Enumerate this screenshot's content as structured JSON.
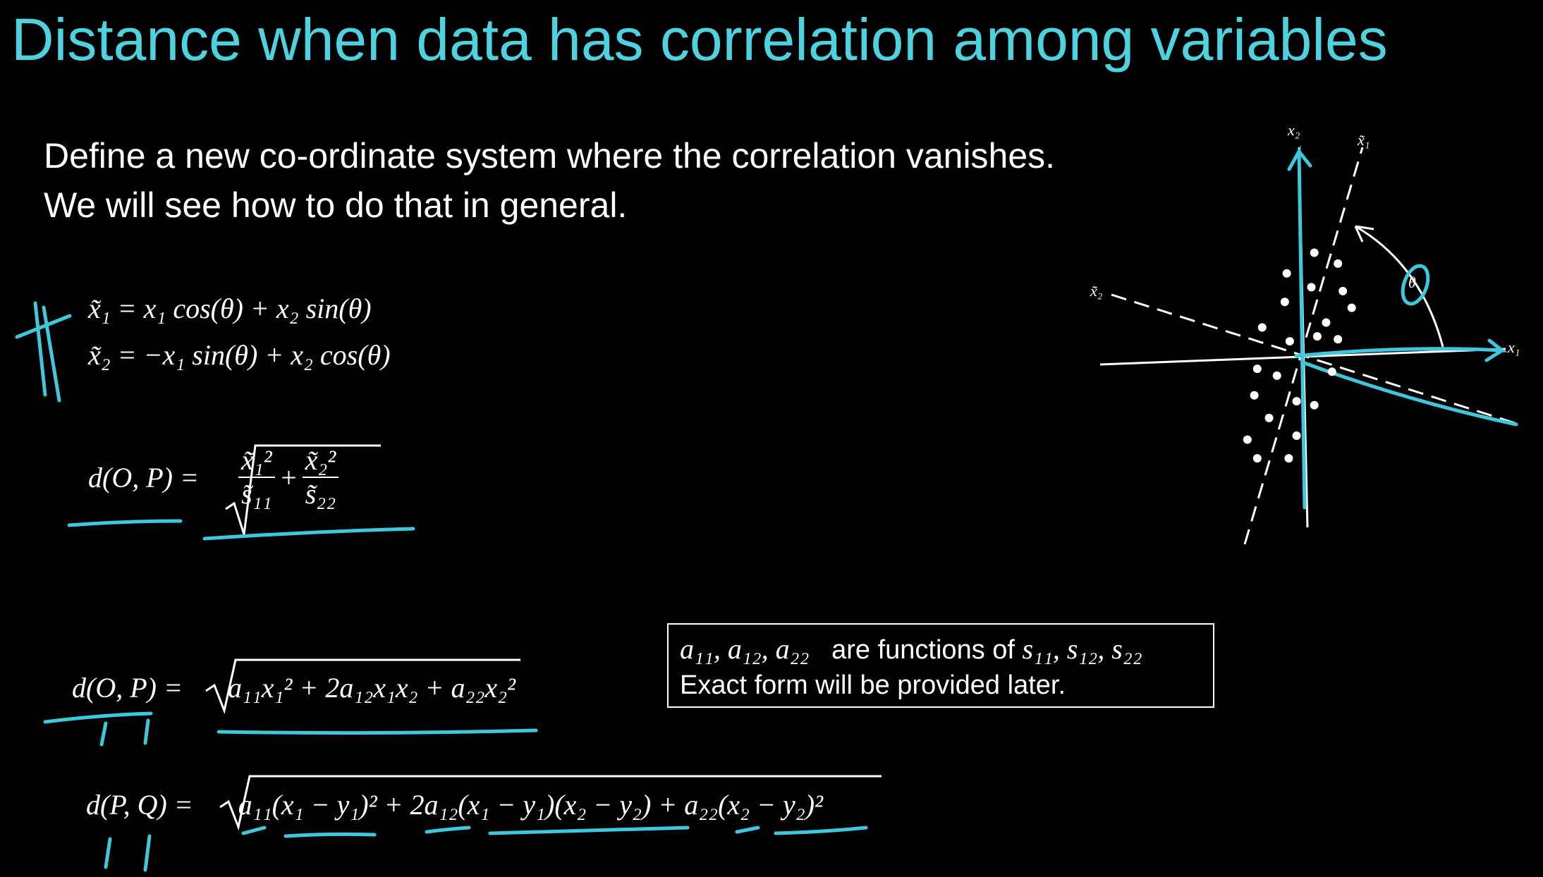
{
  "title": "Distance when data has correlation among variables",
  "body": [
    "Define a new co-ordinate system where the correlation vanishes.",
    "We will see how to do that in general."
  ],
  "equations": [
    "x̃₁ = x₁ cos(θ) + x₂ sin(θ)",
    "x̃₂ = −x₁ sin(θ) + x₂ cos(θ)"
  ],
  "distance_rotated": {
    "lhs": "d(O, P) =",
    "num1": "x̃₁²",
    "den1": "s̃₁₁",
    "plus": "+",
    "num2": "x̃₂²",
    "den2": "s̃₂₂"
  },
  "distance_general": {
    "lhs": "d(O, P) =",
    "radicand": "a₁₁x₁² + 2a₁₂x₁x₂ + a₂₂x₂²"
  },
  "distance_pq": {
    "lhs": "d(P, Q) =",
    "radicand": "a₁₁(x₁ − y₁)² + 2a₁₂(x₁ − y₁)(x₂ − y₂) + a₂₂(x₂ − y₂)²"
  },
  "note": {
    "line1_coeffs": "a₁₁, a₁₂, a₂₂",
    "line1_text": "are functions of",
    "line1_vars": "s₁₁, s₁₂, s₂₂",
    "line2": "Exact form will be provided later."
  },
  "diagram": {
    "x1": "x₁",
    "x2": "x₂",
    "xt1": "x̃₁",
    "xt2": "x̃₂",
    "theta": "θ"
  }
}
